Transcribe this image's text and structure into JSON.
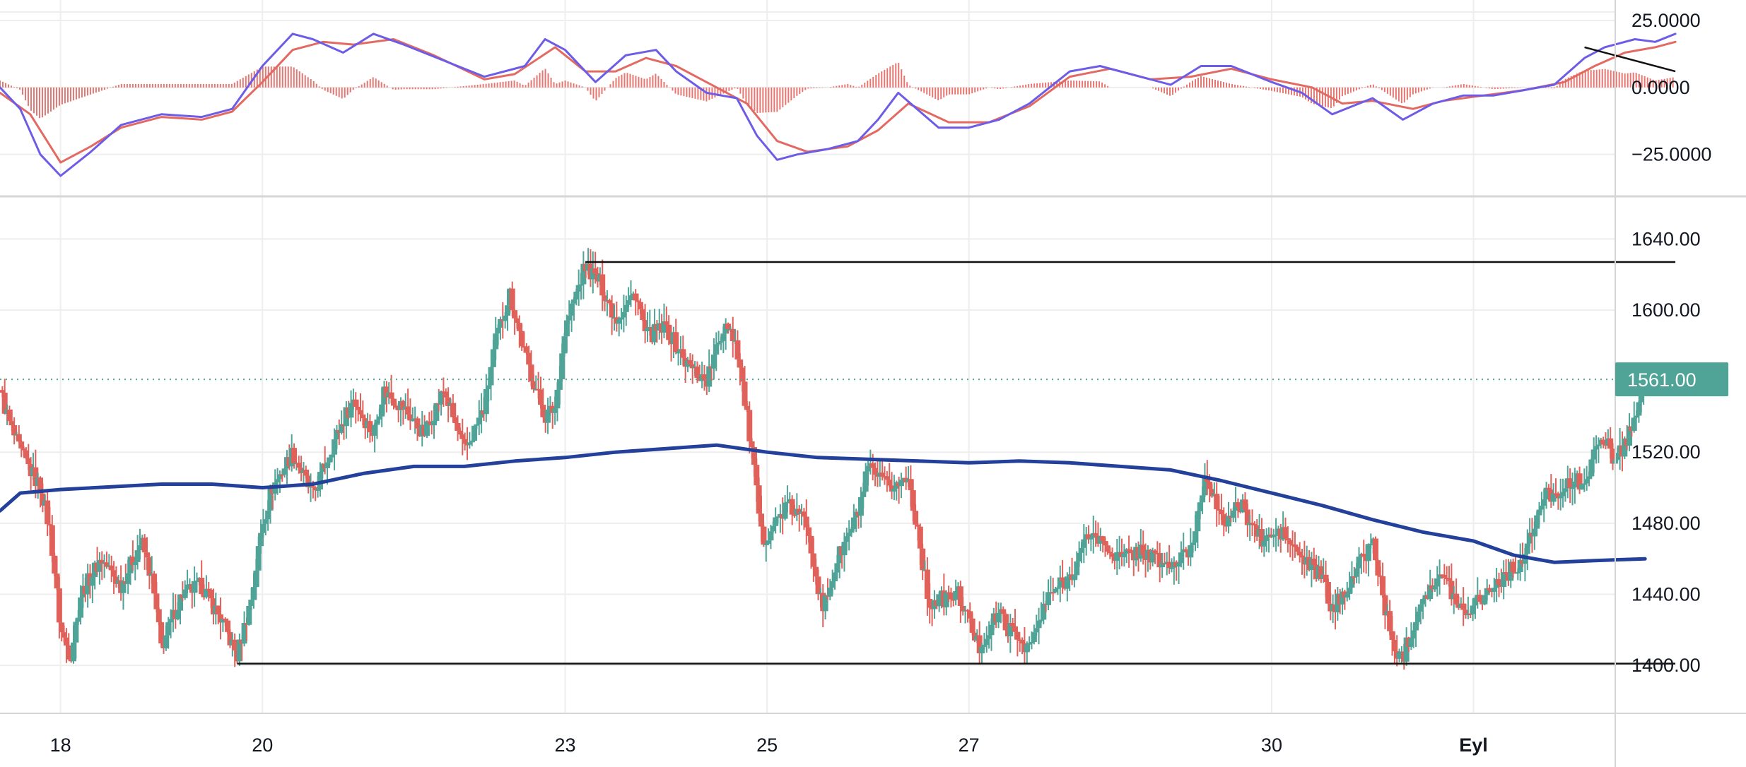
{
  "colors": {
    "up": "#4fa397",
    "down": "#e0605a",
    "ma": "#23409a",
    "macd_line": "#6d5ce6",
    "signal_line": "#e36a62",
    "hist": "#e0605a",
    "grid": "#eeeeee",
    "trendline": "#111111",
    "price_badge": "#4fa397"
  },
  "price_badge": {
    "label": "1561.00"
  },
  "chart_data": [
    {
      "type": "line",
      "panel": "macd",
      "y_ticks": [
        "25.0000",
        "0.0000",
        "−25.0000"
      ],
      "y_tick_values": [
        25,
        0,
        -25
      ],
      "ylim": [
        -38,
        30
      ],
      "series": [
        {
          "role": "macd",
          "points": [
            [
              17.4,
              0
            ],
            [
              17.6,
              -8
            ],
            [
              17.8,
              -25
            ],
            [
              18.0,
              -33
            ],
            [
              18.3,
              -24
            ],
            [
              18.6,
              -14
            ],
            [
              19.0,
              -10
            ],
            [
              19.4,
              -11
            ],
            [
              19.7,
              -8
            ],
            [
              20.0,
              8
            ],
            [
              20.3,
              20
            ],
            [
              20.5,
              18
            ],
            [
              20.8,
              13
            ],
            [
              21.1,
              20
            ],
            [
              21.4,
              16
            ],
            [
              21.8,
              10
            ],
            [
              22.2,
              4
            ],
            [
              22.6,
              8
            ],
            [
              22.8,
              18
            ],
            [
              23.0,
              14
            ],
            [
              23.3,
              2
            ],
            [
              23.6,
              12
            ],
            [
              23.9,
              14
            ],
            [
              24.1,
              6
            ],
            [
              24.4,
              -2
            ],
            [
              24.7,
              -4
            ],
            [
              24.9,
              -18
            ],
            [
              25.1,
              -27
            ],
            [
              25.3,
              -25
            ],
            [
              25.6,
              -23
            ],
            [
              25.9,
              -20
            ],
            [
              26.1,
              -12
            ],
            [
              26.3,
              -2
            ],
            [
              26.7,
              -15
            ],
            [
              27.0,
              -15
            ],
            [
              27.3,
              -12
            ],
            [
              27.6,
              -6
            ],
            [
              28.0,
              6
            ],
            [
              28.3,
              8
            ],
            [
              28.7,
              4
            ],
            [
              29.0,
              1
            ],
            [
              29.3,
              8
            ],
            [
              29.6,
              8
            ],
            [
              30.0,
              2
            ],
            [
              30.3,
              -2
            ],
            [
              30.6,
              -10
            ],
            [
              31.0,
              -4
            ],
            [
              31.3,
              -12
            ],
            [
              31.6,
              -6
            ],
            [
              31.9,
              -3
            ],
            [
              32.2,
              -3
            ],
            [
              32.5,
              -1
            ],
            [
              32.8,
              1
            ],
            [
              33.1,
              11
            ],
            [
              33.3,
              15
            ],
            [
              33.6,
              18
            ],
            [
              33.8,
              17
            ],
            [
              34.0,
              20
            ]
          ]
        },
        {
          "role": "signal",
          "points": [
            [
              17.4,
              -2
            ],
            [
              17.7,
              -10
            ],
            [
              18.0,
              -28
            ],
            [
              18.3,
              -22
            ],
            [
              18.6,
              -15
            ],
            [
              19.0,
              -11
            ],
            [
              19.4,
              -12
            ],
            [
              19.7,
              -9
            ],
            [
              20.0,
              2
            ],
            [
              20.3,
              14
            ],
            [
              20.6,
              17
            ],
            [
              20.9,
              16
            ],
            [
              21.3,
              18
            ],
            [
              21.7,
              12
            ],
            [
              22.2,
              3
            ],
            [
              22.5,
              5
            ],
            [
              22.9,
              15
            ],
            [
              23.2,
              6
            ],
            [
              23.5,
              6
            ],
            [
              23.8,
              11
            ],
            [
              24.1,
              8
            ],
            [
              24.5,
              0
            ],
            [
              24.8,
              -6
            ],
            [
              25.1,
              -20
            ],
            [
              25.4,
              -24
            ],
            [
              25.8,
              -22
            ],
            [
              26.1,
              -16
            ],
            [
              26.4,
              -6
            ],
            [
              26.8,
              -13
            ],
            [
              27.2,
              -13
            ],
            [
              27.6,
              -7
            ],
            [
              28.0,
              4
            ],
            [
              28.4,
              7
            ],
            [
              28.8,
              3
            ],
            [
              29.2,
              4
            ],
            [
              29.6,
              7
            ],
            [
              30.0,
              3
            ],
            [
              30.4,
              0
            ],
            [
              30.7,
              -6
            ],
            [
              31.0,
              -5
            ],
            [
              31.4,
              -8
            ],
            [
              31.7,
              -5
            ],
            [
              32.1,
              -3
            ],
            [
              32.5,
              -1
            ],
            [
              32.9,
              2
            ],
            [
              33.2,
              8
            ],
            [
              33.5,
              13
            ],
            [
              33.8,
              15
            ],
            [
              34.0,
              17
            ]
          ]
        }
      ]
    },
    {
      "type": "candlestick",
      "panel": "price",
      "y_ticks": [
        "1640.00",
        "1600.00",
        "1520.00",
        "1480.00",
        "1440.00",
        "1400.00"
      ],
      "y_tick_values": [
        1640,
        1600,
        1520,
        1480,
        1440,
        1400
      ],
      "ylim": [
        1377,
        1660
      ],
      "x_ticks": [
        {
          "label": "18",
          "value": 18
        },
        {
          "label": "20",
          "value": 20
        },
        {
          "label": "23",
          "value": 23
        },
        {
          "label": "25",
          "value": 25
        },
        {
          "label": "27",
          "value": 27
        },
        {
          "label": "30",
          "value": 30
        },
        {
          "label": "Eyl",
          "value": 32,
          "bold": true
        }
      ],
      "xlim": [
        17.4,
        34.7
      ],
      "last_price": 1561,
      "price_path": [
        [
          17.4,
          1555
        ],
        [
          17.5,
          1535
        ],
        [
          17.6,
          1520
        ],
        [
          17.8,
          1500
        ],
        [
          17.9,
          1475
        ],
        [
          18.0,
          1420
        ],
        [
          18.1,
          1405
        ],
        [
          18.2,
          1440
        ],
        [
          18.4,
          1460
        ],
        [
          18.6,
          1445
        ],
        [
          18.8,
          1470
        ],
        [
          18.9,
          1450
        ],
        [
          19.0,
          1410
        ],
        [
          19.2,
          1440
        ],
        [
          19.4,
          1445
        ],
        [
          19.6,
          1425
        ],
        [
          19.75,
          1405
        ],
        [
          19.9,
          1440
        ],
        [
          20.0,
          1480
        ],
        [
          20.1,
          1500
        ],
        [
          20.3,
          1520
        ],
        [
          20.5,
          1495
        ],
        [
          20.7,
          1525
        ],
        [
          20.9,
          1550
        ],
        [
          21.1,
          1530
        ],
        [
          21.2,
          1555
        ],
        [
          21.4,
          1545
        ],
        [
          21.6,
          1530
        ],
        [
          21.8,
          1555
        ],
        [
          22.0,
          1520
        ],
        [
          22.2,
          1545
        ],
        [
          22.3,
          1580
        ],
        [
          22.45,
          1610
        ],
        [
          22.6,
          1575
        ],
        [
          22.8,
          1540
        ],
        [
          22.9,
          1545
        ],
        [
          23.0,
          1590
        ],
        [
          23.2,
          1625
        ],
        [
          23.35,
          1615
        ],
        [
          23.5,
          1595
        ],
        [
          23.7,
          1610
        ],
        [
          23.8,
          1585
        ],
        [
          24.0,
          1590
        ],
        [
          24.2,
          1570
        ],
        [
          24.4,
          1560
        ],
        [
          24.6,
          1595
        ],
        [
          24.7,
          1580
        ],
        [
          24.85,
          1520
        ],
        [
          24.95,
          1470
        ],
        [
          25.2,
          1490
        ],
        [
          25.4,
          1480
        ],
        [
          25.55,
          1430
        ],
        [
          25.7,
          1460
        ],
        [
          25.9,
          1485
        ],
        [
          26.0,
          1510
        ],
        [
          26.2,
          1500
        ],
        [
          26.4,
          1505
        ],
        [
          26.5,
          1475
        ],
        [
          26.6,
          1435
        ],
        [
          26.9,
          1440
        ],
        [
          27.1,
          1410
        ],
        [
          27.3,
          1430
        ],
        [
          27.4,
          1420
        ],
        [
          27.6,
          1410
        ],
        [
          27.8,
          1440
        ],
        [
          28.0,
          1450
        ],
        [
          28.2,
          1475
        ],
        [
          28.5,
          1460
        ],
        [
          28.7,
          1465
        ],
        [
          29.0,
          1455
        ],
        [
          29.2,
          1465
        ],
        [
          29.35,
          1510
        ],
        [
          29.5,
          1480
        ],
        [
          29.7,
          1490
        ],
        [
          29.9,
          1470
        ],
        [
          30.1,
          1475
        ],
        [
          30.3,
          1460
        ],
        [
          30.5,
          1450
        ],
        [
          30.6,
          1430
        ],
        [
          30.8,
          1450
        ],
        [
          31.0,
          1470
        ],
        [
          31.2,
          1410
        ],
        [
          31.3,
          1405
        ],
        [
          31.5,
          1440
        ],
        [
          31.7,
          1450
        ],
        [
          31.9,
          1430
        ],
        [
          32.1,
          1440
        ],
        [
          32.3,
          1450
        ],
        [
          32.5,
          1460
        ],
        [
          32.7,
          1495
        ],
        [
          32.9,
          1500
        ],
        [
          33.1,
          1505
        ],
        [
          33.3,
          1530
        ],
        [
          33.4,
          1515
        ],
        [
          33.5,
          1525
        ],
        [
          33.6,
          1540
        ],
        [
          33.7,
          1561
        ]
      ],
      "moving_average": [
        [
          17.4,
          1487
        ],
        [
          17.6,
          1497
        ],
        [
          18.0,
          1499
        ],
        [
          19.0,
          1502
        ],
        [
          19.5,
          1502
        ],
        [
          20.0,
          1500
        ],
        [
          20.5,
          1502
        ],
        [
          21.0,
          1508
        ],
        [
          21.5,
          1512
        ],
        [
          22.0,
          1512
        ],
        [
          22.5,
          1515
        ],
        [
          23.0,
          1517
        ],
        [
          23.5,
          1520
        ],
        [
          24.0,
          1522
        ],
        [
          24.5,
          1524
        ],
        [
          25.0,
          1520
        ],
        [
          25.5,
          1517
        ],
        [
          26.0,
          1516
        ],
        [
          26.5,
          1515
        ],
        [
          27.0,
          1514
        ],
        [
          27.5,
          1515
        ],
        [
          28.0,
          1514
        ],
        [
          28.5,
          1512
        ],
        [
          29.0,
          1510
        ],
        [
          29.5,
          1504
        ],
        [
          30.0,
          1497
        ],
        [
          30.5,
          1490
        ],
        [
          31.0,
          1482
        ],
        [
          31.5,
          1475
        ],
        [
          32.0,
          1470
        ],
        [
          32.4,
          1462
        ],
        [
          32.8,
          1458
        ],
        [
          33.2,
          1459
        ],
        [
          33.7,
          1460
        ]
      ],
      "support_line": {
        "x": [
          19.75,
          34.0
        ],
        "y": 1401
      },
      "resistance_line": {
        "x": [
          23.2,
          34.0
        ],
        "y": 1627
      }
    }
  ],
  "macd_trendline": {
    "x": [
      33.1,
      34.0
    ],
    "y": [
      15,
      6
    ]
  }
}
